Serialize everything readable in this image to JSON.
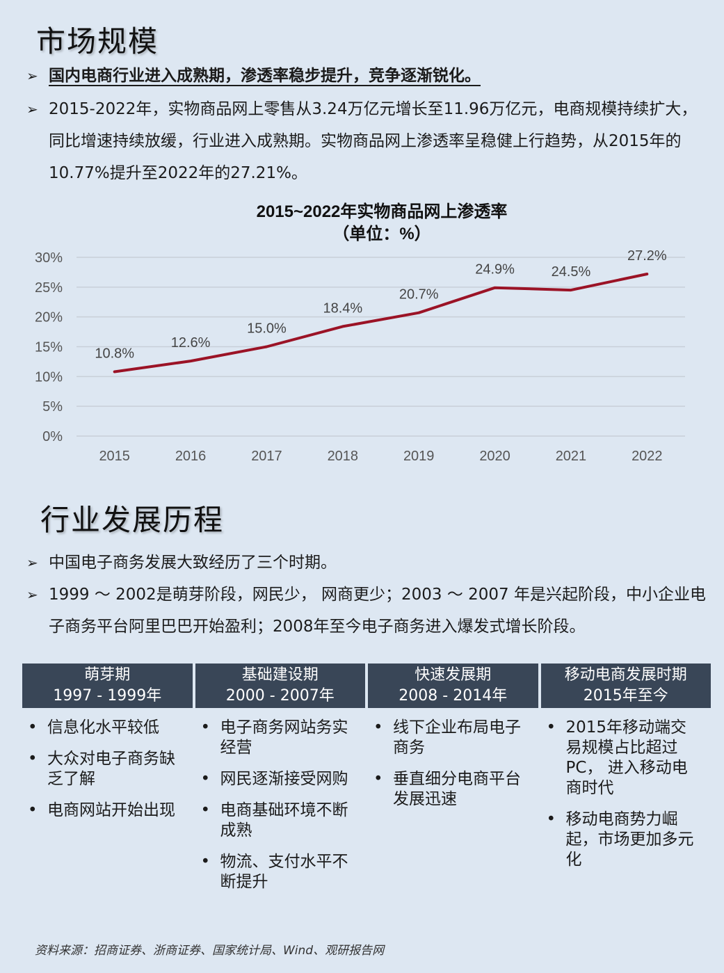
{
  "section1": {
    "title": "市场规模",
    "bullets": [
      "国内电商行业进入成熟期，渗透率稳步提升，竞争逐渐锐化。",
      "2015-2022年，实物商品网上零售从3.24万亿元增长至11.96万亿元，电商规模持续扩大，同比增速持续放缓，行业进入成熟期。实物商品网上渗透率呈稳健上行趋势，从2015年的10.77%提升至2022年的27.21%。"
    ]
  },
  "chart_data": {
    "type": "line",
    "title": "2015~2022年实物商品网上渗透率",
    "subtitle": "（单位：%）",
    "categories": [
      "2015",
      "2016",
      "2017",
      "2018",
      "2019",
      "2020",
      "2021",
      "2022"
    ],
    "values": [
      10.8,
      12.6,
      15.0,
      18.4,
      20.7,
      24.9,
      24.5,
      27.2
    ],
    "data_labels": [
      "10.8%",
      "12.6%",
      "15.0%",
      "18.4%",
      "20.7%",
      "24.9%",
      "24.5%",
      "27.2%"
    ],
    "y_ticks": [
      "0%",
      "5%",
      "10%",
      "15%",
      "20%",
      "25%",
      "30%"
    ],
    "ylim": [
      0,
      30
    ],
    "grid": true,
    "legend": "none",
    "line_color": "#9b1326",
    "grid_color": "#c8cfd8"
  },
  "section2": {
    "title": "行业发展历程",
    "bullets": [
      "中国电子商务发展大致经历了三个时期。",
      "1999 ～ 2002是萌芽阶段，网民少， 网商更少；2003 ～ 2007 年是兴起阶段，中小企业电子商务平台阿里巴巴开始盈利；2008年至今电子商务进入爆发式增长阶段。"
    ]
  },
  "phases": [
    {
      "name": "萌芽期",
      "period": "1997 - 1999年",
      "items": [
        "信息化水平较低",
        "大众对电子商务缺乏了解",
        "电商网站开始出现"
      ]
    },
    {
      "name": "基础建设期",
      "period": "2000 - 2007年",
      "items": [
        "电子商务网站务实经营",
        "网民逐渐接受网购",
        "电商基础环境不断成熟",
        "物流、支付水平不断提升"
      ]
    },
    {
      "name": "快速发展期",
      "period": "2008 - 2014年",
      "items": [
        "线下企业布局电子商务",
        "垂直细分电商平台发展迅速"
      ]
    },
    {
      "name": "移动电商发展时期",
      "period": "2015年至今",
      "items": [
        "2015年移动端交易规模占比超过PC， 进入移动电商时代",
        "移动电商势力崛起，市场更加多元化"
      ]
    }
  ],
  "source": "资料来源：招商证券、浙商证券、国家统计局、Wind、观研报告网",
  "colors": {
    "background": "#dde7f2",
    "table_header": "#394657"
  }
}
